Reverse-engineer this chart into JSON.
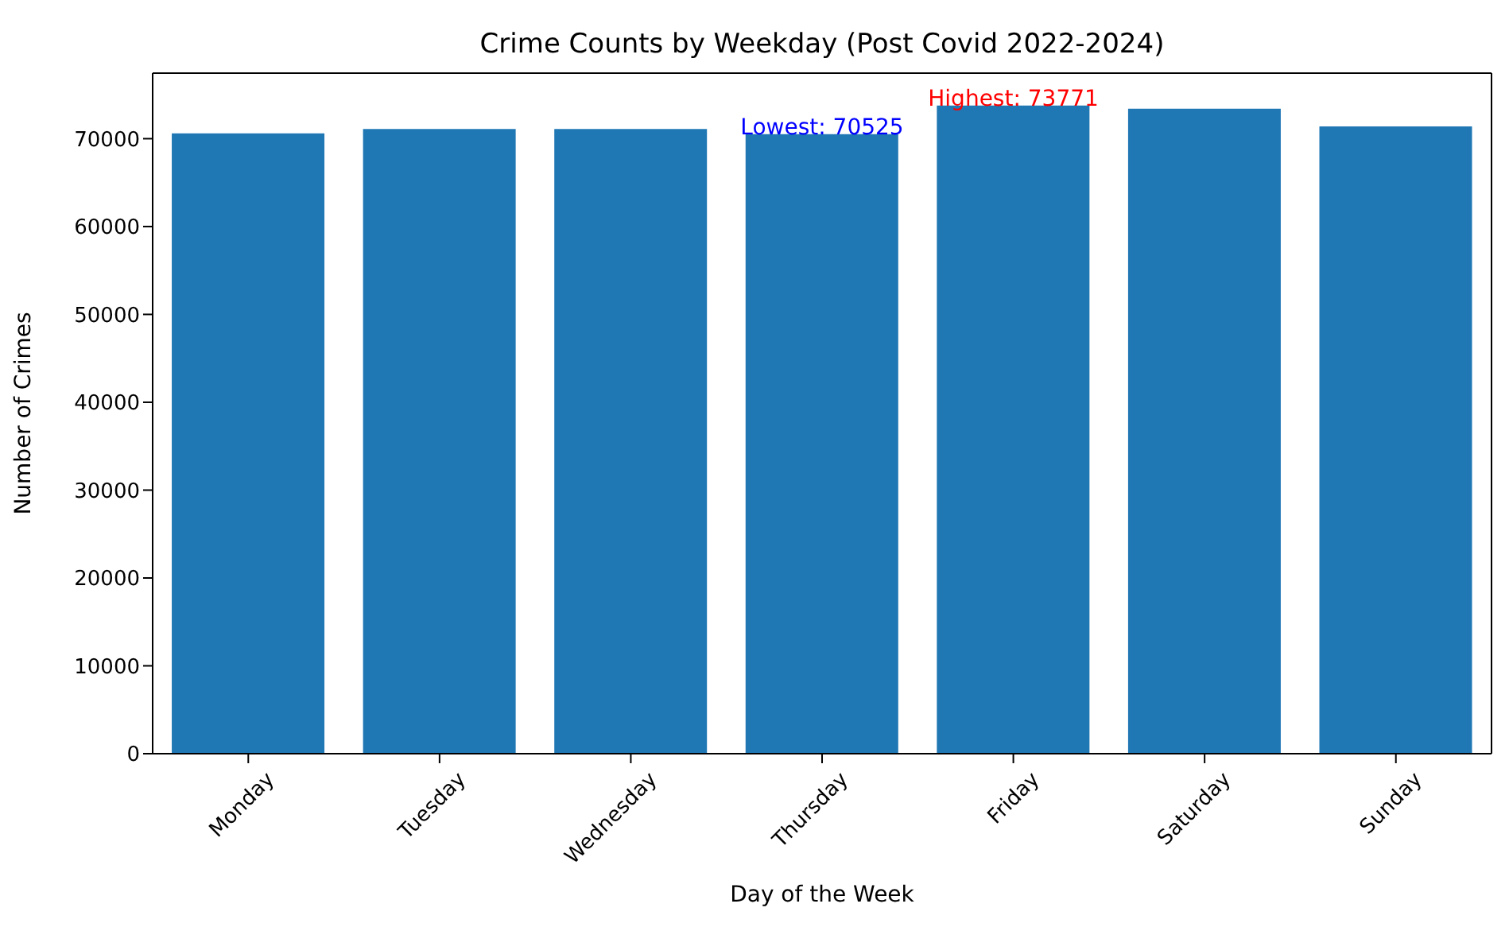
{
  "chart_data": {
    "type": "bar",
    "title": "Crime Counts by Weekday (Post Covid 2022-2024)",
    "xlabel": "Day of the Week",
    "ylabel": "Number of Crimes",
    "categories": [
      "Monday",
      "Tuesday",
      "Wednesday",
      "Thursday",
      "Friday",
      "Saturday",
      "Sunday"
    ],
    "values": [
      70600,
      71100,
      71100,
      70525,
      73771,
      73400,
      71400
    ],
    "color": "#1f77b4",
    "ylim": [
      0,
      77460
    ],
    "yticks": [
      0,
      10000,
      20000,
      30000,
      40000,
      50000,
      60000,
      70000
    ],
    "grid": false,
    "legend": false,
    "annotations": [
      {
        "text": "Lowest: 70525",
        "x": "Thursday",
        "y": 70525
      },
      {
        "text": "Highest: 73771",
        "x": "Friday",
        "y": 73771
      }
    ]
  }
}
